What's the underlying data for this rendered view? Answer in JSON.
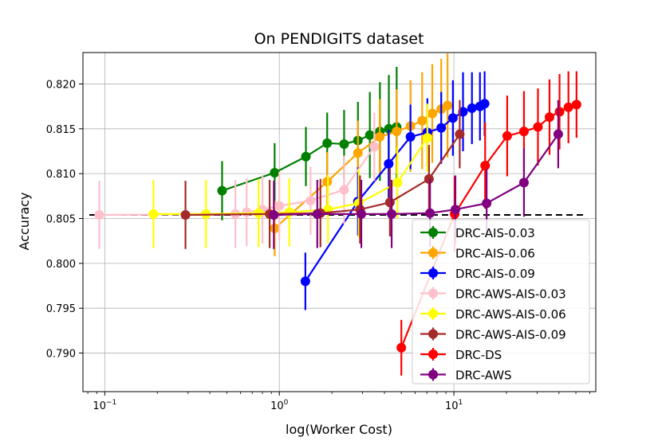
{
  "chart_data": {
    "type": "line",
    "title": "On PENDIGITS dataset",
    "xlabel": "log(Worker Cost)",
    "ylabel": "Accuracy",
    "xscale": "log",
    "xlim": [
      0.075,
      65
    ],
    "ylim": [
      0.7857,
      0.8235
    ],
    "grid": true,
    "legend_position": "lower-right",
    "x_ticks": [
      {
        "value": 0.1,
        "base": "10",
        "exp": "−1"
      },
      {
        "value": 1,
        "base": "10",
        "exp": "0"
      },
      {
        "value": 10,
        "base": "10",
        "exp": "1"
      }
    ],
    "y_ticks": [
      0.79,
      0.795,
      0.8,
      0.805,
      0.81,
      0.815,
      0.82
    ],
    "y_tick_labels": [
      "0.790",
      "0.795",
      "0.800",
      "0.805",
      "0.810",
      "0.815",
      "0.820"
    ],
    "baseline": {
      "y": 0.8054,
      "style": "dashed"
    },
    "series": [
      {
        "name": "DRC-AIS-0.03",
        "color": "#008000",
        "marker": "o",
        "x": [
          0.47,
          0.94,
          1.42,
          1.88,
          2.35,
          2.82,
          3.3,
          3.77,
          4.24,
          4.7
        ],
        "y": [
          0.8081,
          0.8101,
          0.8119,
          0.8134,
          0.8133,
          0.8137,
          0.8143,
          0.8147,
          0.815,
          0.8152
        ],
        "err": [
          0.0033,
          0.0033,
          0.0033,
          0.0034,
          0.0038,
          0.0043,
          0.0048,
          0.0055,
          0.006,
          0.0067
        ]
      },
      {
        "name": "DRC-AIS-0.06",
        "color": "#ffa500",
        "marker": "o",
        "x": [
          0.94,
          1.88,
          2.82,
          3.76,
          4.7,
          5.64,
          6.58,
          7.52,
          8.46,
          9.2
        ],
        "y": [
          0.8039,
          0.8091,
          0.8123,
          0.8141,
          0.8147,
          0.8153,
          0.8159,
          0.8167,
          0.8172,
          0.8176
        ],
        "err": [
          0.0031,
          0.0033,
          0.0036,
          0.0042,
          0.0047,
          0.0051,
          0.0054,
          0.0055,
          0.0056,
          0.0058
        ]
      },
      {
        "name": "DRC-AIS-0.09",
        "color": "#0000ff",
        "marker": "o",
        "x": [
          1.41,
          2.82,
          4.23,
          5.64,
          7.05,
          8.46,
          9.87,
          11.28,
          12.69,
          14.1,
          15.0
        ],
        "y": [
          0.798,
          0.8069,
          0.8111,
          0.8141,
          0.8146,
          0.8151,
          0.8162,
          0.8169,
          0.8173,
          0.8175,
          0.8178
        ],
        "err": [
          0.0032,
          0.0038,
          0.0038,
          0.0036,
          0.0038,
          0.004,
          0.0042,
          0.0044,
          0.004,
          0.0038,
          0.0036
        ]
      },
      {
        "name": "DRC-AWS-AIS-0.03",
        "color": "#ffc0cb",
        "marker": "o",
        "x": [
          0.093,
          0.56,
          0.65,
          0.8,
          1.0,
          1.51,
          2.35,
          3.5
        ],
        "y": [
          0.8054,
          0.8055,
          0.8057,
          0.806,
          0.8064,
          0.807,
          0.8082,
          0.813
        ],
        "err": [
          0.0038,
          0.0038,
          0.0038,
          0.0038,
          0.0038,
          0.0038,
          0.0038,
          0.0038
        ]
      },
      {
        "name": "DRC-AWS-AIS-0.06",
        "color": "#ffff00",
        "marker": "o",
        "x": [
          0.19,
          0.38,
          0.76,
          1.14,
          1.9,
          2.85,
          4.75,
          7.05
        ],
        "y": [
          0.8055,
          0.8055,
          0.8056,
          0.8057,
          0.806,
          0.8067,
          0.809,
          0.814
        ],
        "err": [
          0.0038,
          0.0038,
          0.0038,
          0.0038,
          0.0038,
          0.0038,
          0.004,
          0.0038
        ]
      },
      {
        "name": "DRC-AWS-AIS-0.09",
        "color": "#a52a2a",
        "marker": "o",
        "x": [
          0.29,
          0.88,
          1.72,
          2.9,
          4.3,
          7.2,
          10.8
        ],
        "y": [
          0.8054,
          0.8055,
          0.8056,
          0.806,
          0.8068,
          0.8094,
          0.8144
        ],
        "err": [
          0.0038,
          0.0038,
          0.0038,
          0.0038,
          0.0038,
          0.0038,
          0.0038
        ]
      },
      {
        "name": "DRC-DS",
        "color": "#ff0000",
        "marker": "o",
        "x": [
          5.0,
          10.1,
          15.1,
          20.2,
          25.2,
          30.3,
          35.3,
          40.3,
          45.3,
          50.4
        ],
        "y": [
          0.7906,
          0.8055,
          0.8109,
          0.8142,
          0.8147,
          0.8152,
          0.8163,
          0.8169,
          0.8174,
          0.8177
        ],
        "err": [
          0.0031,
          0.0042,
          0.0048,
          0.0045,
          0.0045,
          0.0043,
          0.0042,
          0.0042,
          0.004,
          0.0037
        ]
      },
      {
        "name": "DRC-AWS",
        "color": "#800080",
        "marker": "o",
        "x": [
          0.93,
          1.65,
          2.95,
          4.4,
          7.3,
          10.2,
          15.4,
          25.2,
          39.6
        ],
        "y": [
          0.8054,
          0.8055,
          0.8055,
          0.8055,
          0.8056,
          0.806,
          0.8067,
          0.809,
          0.8144
        ],
        "err": [
          0.0038,
          0.0038,
          0.0038,
          0.0038,
          0.0038,
          0.0038,
          0.0038,
          0.0038,
          0.0038
        ]
      }
    ]
  }
}
